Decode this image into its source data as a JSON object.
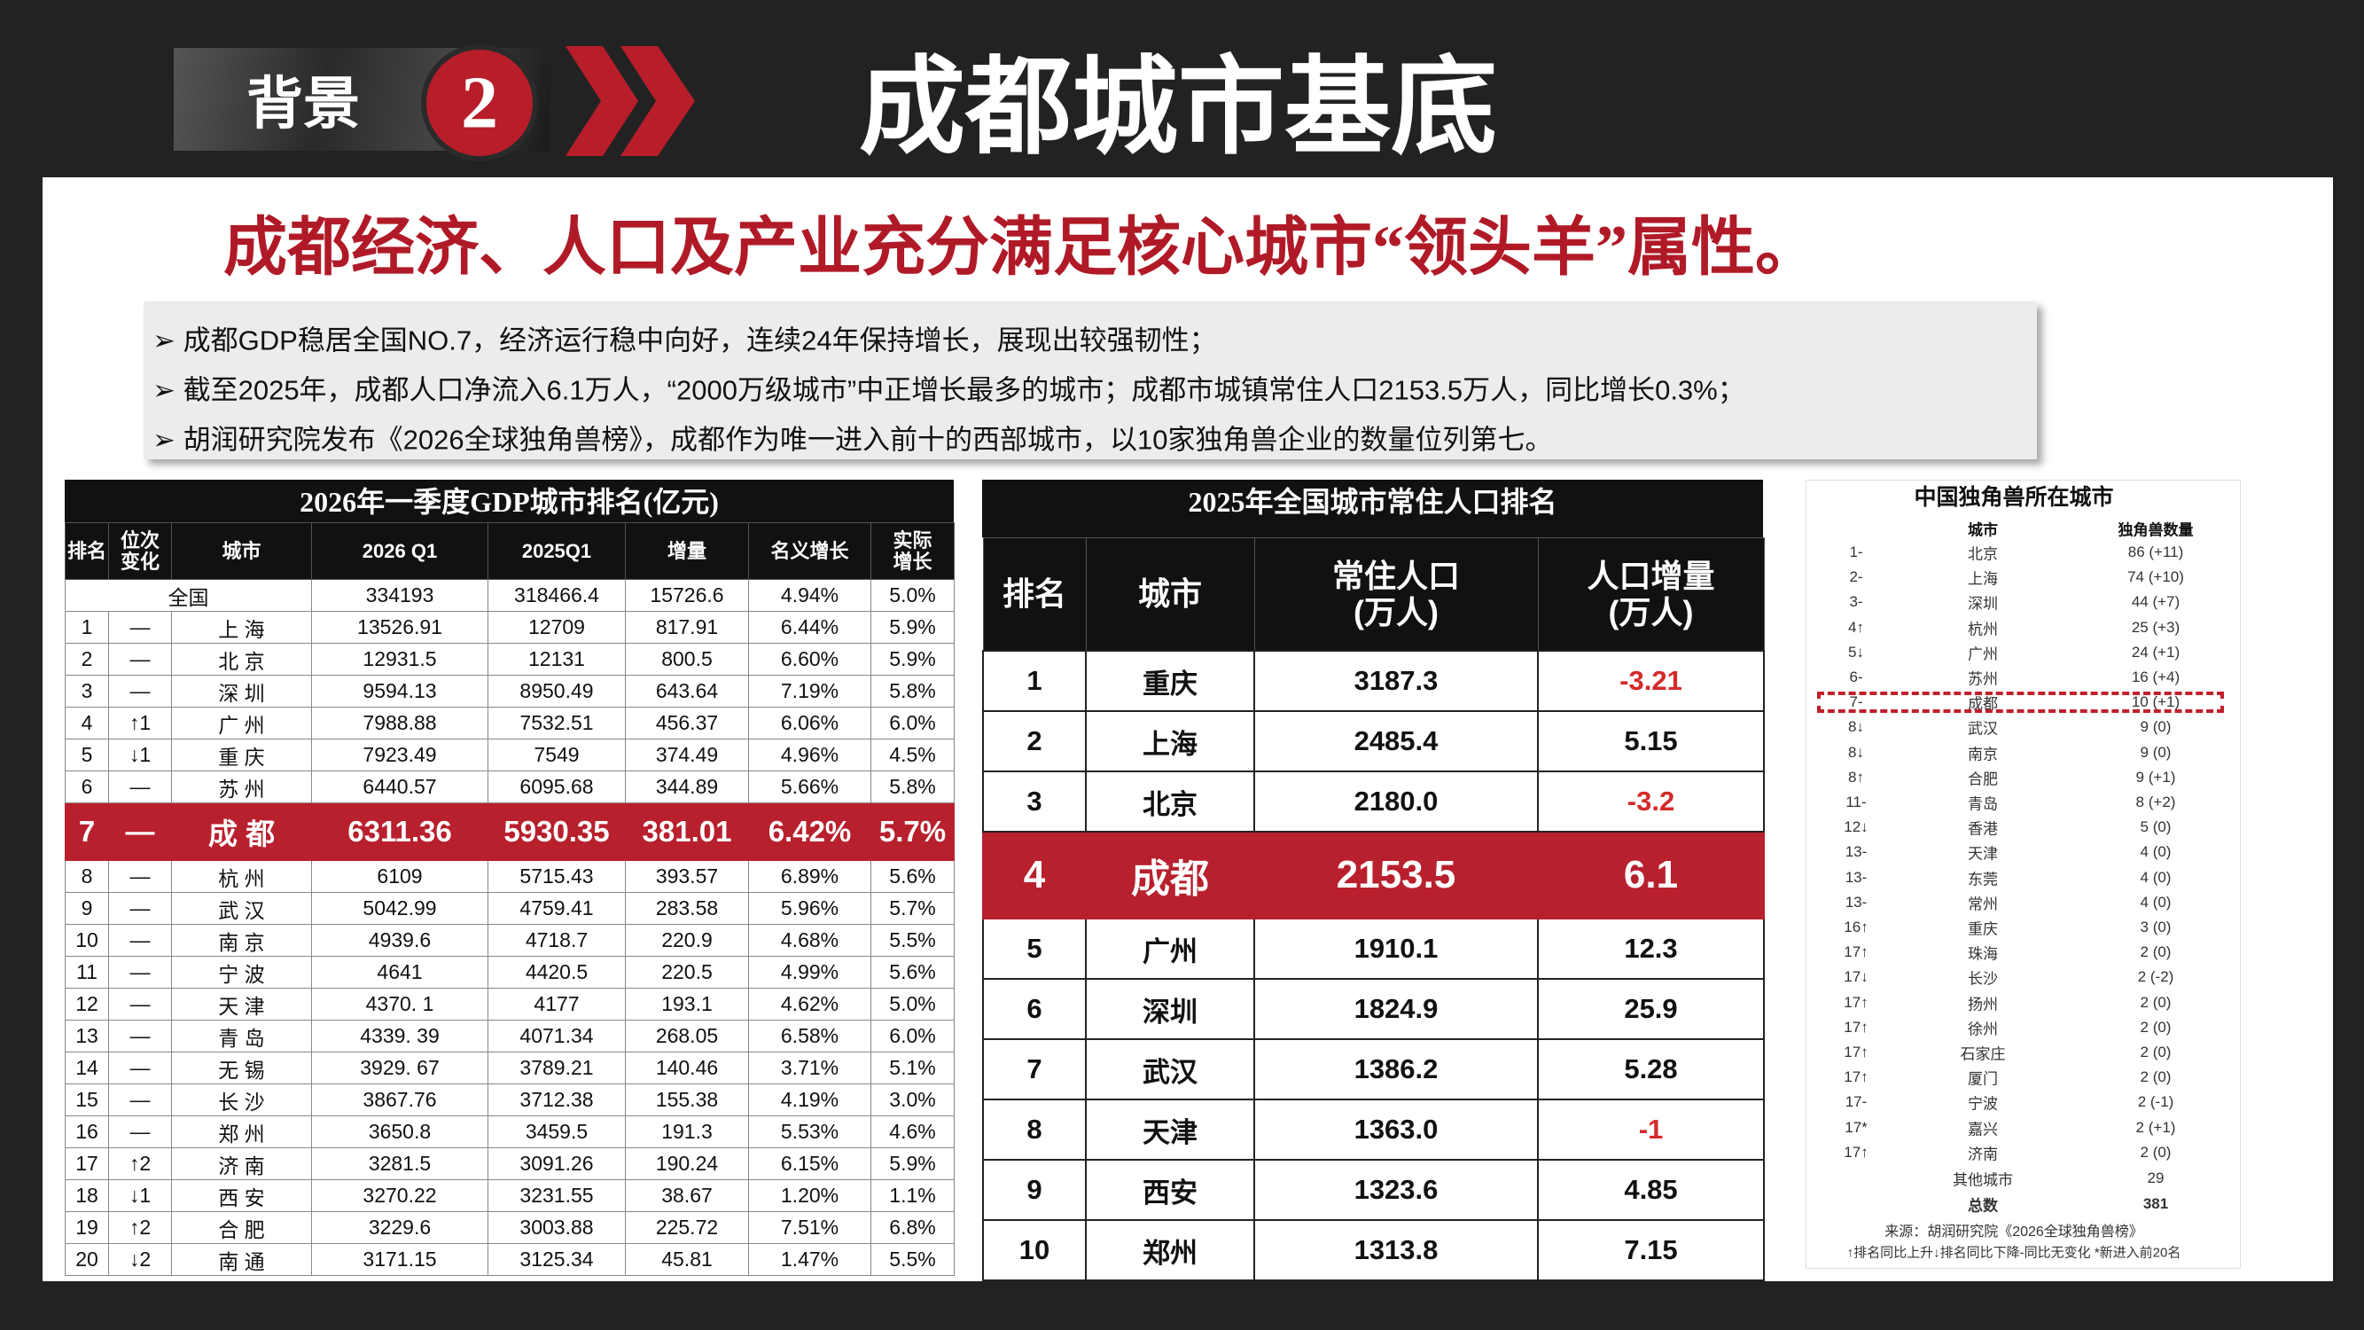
{
  "header": {
    "section": "背景",
    "number": "2",
    "title": "成都城市基底"
  },
  "headline": "成都经济、人口及产业充分满足核心城市“领头羊”属性。",
  "bullets": [
    "成都GDP稳居全国NO.7，经济运行稳中向好，连续24年保持增长，展现出较强韧性；",
    "截至2025年，成都人口净流入6.1万人，“2000万级城市”中正增长最多的城市；成都市城镇常住人口2153.5万人，同比增长0.3%；",
    "胡润研究院发布《2026全球独角兽榜》，成都作为唯一进入前十的西部城市，以10家独角兽企业的数量位列第七。"
  ],
  "gdp_table": {
    "title": "2026年一季度GDP城市排名(亿元)",
    "columns": [
      "排名",
      "位次\n变化",
      "城市",
      "2026 Q1",
      "2025Q1",
      "增量",
      "名义增长",
      "实际\n增长"
    ],
    "national": {
      "label": "全国",
      "values": [
        "334193",
        "318466.4",
        "15726.6",
        "4.94%",
        "5.0%"
      ]
    },
    "highlight_row": 6,
    "rows": [
      [
        "1",
        "—",
        "上 海",
        "13526.91",
        "12709",
        "817.91",
        "6.44%",
        "5.9%"
      ],
      [
        "2",
        "—",
        "北 京",
        "12931.5",
        "12131",
        "800.5",
        "6.60%",
        "5.9%"
      ],
      [
        "3",
        "—",
        "深 圳",
        "9594.13",
        "8950.49",
        "643.64",
        "7.19%",
        "5.8%"
      ],
      [
        "4",
        "↑1",
        "广 州",
        "7988.88",
        "7532.51",
        "456.37",
        "6.06%",
        "6.0%"
      ],
      [
        "5",
        "↓1",
        "重 庆",
        "7923.49",
        "7549",
        "374.49",
        "4.96%",
        "4.5%"
      ],
      [
        "6",
        "—",
        "苏 州",
        "6440.57",
        "6095.68",
        "344.89",
        "5.66%",
        "5.8%"
      ],
      [
        "7",
        "—",
        "成 都",
        "6311.36",
        "5930.35",
        "381.01",
        "6.42%",
        "5.7%"
      ],
      [
        "8",
        "—",
        "杭 州",
        "6109",
        "5715.43",
        "393.57",
        "6.89%",
        "5.6%"
      ],
      [
        "9",
        "—",
        "武 汉",
        "5042.99",
        "4759.41",
        "283.58",
        "5.96%",
        "5.7%"
      ],
      [
        "10",
        "—",
        "南 京",
        "4939.6",
        "4718.7",
        "220.9",
        "4.68%",
        "5.5%"
      ],
      [
        "11",
        "—",
        "宁 波",
        "4641",
        "4420.5",
        "220.5",
        "4.99%",
        "5.6%"
      ],
      [
        "12",
        "—",
        "天 津",
        "4370. 1",
        "4177",
        "193.1",
        "4.62%",
        "5.0%"
      ],
      [
        "13",
        "—",
        "青 岛",
        "4339. 39",
        "4071.34",
        "268.05",
        "6.58%",
        "6.0%"
      ],
      [
        "14",
        "—",
        "无 锡",
        "3929. 67",
        "3789.21",
        "140.46",
        "3.71%",
        "5.1%"
      ],
      [
        "15",
        "—",
        "长 沙",
        "3867.76",
        "3712.38",
        "155.38",
        "4.19%",
        "3.0%"
      ],
      [
        "16",
        "—",
        "郑 州",
        "3650.8",
        "3459.5",
        "191.3",
        "5.53%",
        "4.6%"
      ],
      [
        "17",
        "↑2",
        "济 南",
        "3281.5",
        "3091.26",
        "190.24",
        "6.15%",
        "5.9%"
      ],
      [
        "18",
        "↓1",
        "西 安",
        "3270.22",
        "3231.55",
        "38.67",
        "1.20%",
        "1.1%"
      ],
      [
        "19",
        "↑2",
        "合 肥",
        "3229.6",
        "3003.88",
        "225.72",
        "7.51%",
        "6.8%"
      ],
      [
        "20",
        "↓2",
        "南 通",
        "3171.15",
        "3125.34",
        "45.81",
        "1.47%",
        "5.5%"
      ]
    ]
  },
  "population_table": {
    "title": "2025年全国城市常住人口排名",
    "columns": [
      "排名",
      "城市",
      "常住人口\n(万人)",
      "人口增量\n(万人)"
    ],
    "highlight_row": 3,
    "rows": [
      [
        "1",
        "重庆",
        "3187.3",
        "-3.21"
      ],
      [
        "2",
        "上海",
        "2485.4",
        "5.15"
      ],
      [
        "3",
        "北京",
        "2180.0",
        "-3.2"
      ],
      [
        "4",
        "成都",
        "2153.5",
        "6.1"
      ],
      [
        "5",
        "广州",
        "1910.1",
        "12.3"
      ],
      [
        "6",
        "深圳",
        "1824.9",
        "25.9"
      ],
      [
        "7",
        "武汉",
        "1386.2",
        "5.28"
      ],
      [
        "8",
        "天津",
        "1363.0",
        "-1"
      ],
      [
        "9",
        "西安",
        "1323.6",
        "4.85"
      ],
      [
        "10",
        "郑州",
        "1313.8",
        "7.15"
      ]
    ]
  },
  "unicorn_table": {
    "title": "中国独角兽所在城市",
    "columns": [
      "城市",
      "独角兽数量"
    ],
    "highlight_row": 6,
    "rows": [
      [
        "1-",
        "北京",
        "86 (+11)"
      ],
      [
        "2-",
        "上海",
        "74 (+10)"
      ],
      [
        "3-",
        "深圳",
        "44 (+7)"
      ],
      [
        "4↑",
        "杭州",
        "25 (+3)"
      ],
      [
        "5↓",
        "广州",
        "24 (+1)"
      ],
      [
        "6-",
        "苏州",
        "16 (+4)"
      ],
      [
        "7-",
        "成都",
        "10 (+1)"
      ],
      [
        "8↓",
        "武汉",
        "9 (0)"
      ],
      [
        "8↓",
        "南京",
        "9 (0)"
      ],
      [
        "8↑",
        "合肥",
        "9 (+1)"
      ],
      [
        "11-",
        "青岛",
        "8 (+2)"
      ],
      [
        "12↓",
        "香港",
        "5 (0)"
      ],
      [
        "13-",
        "天津",
        "4 (0)"
      ],
      [
        "13-",
        "东莞",
        "4 (0)"
      ],
      [
        "13-",
        "常州",
        "4 (0)"
      ],
      [
        "16↑",
        "重庆",
        "3 (0)"
      ],
      [
        "17↑",
        "珠海",
        "2 (0)"
      ],
      [
        "17↓",
        "长沙",
        "2 (-2)"
      ],
      [
        "17↑",
        "扬州",
        "2 (0)"
      ],
      [
        "17↑",
        "徐州",
        "2 (0)"
      ],
      [
        "17↑",
        "石家庄",
        "2 (0)"
      ],
      [
        "17↑",
        "厦门",
        "2 (0)"
      ],
      [
        "17-",
        "宁波",
        "2 (-1)"
      ],
      [
        "17*",
        "嘉兴",
        "2 (+1)"
      ],
      [
        "17↑",
        "济南",
        "2 (0)"
      ]
    ],
    "others": [
      "其他城市",
      "29"
    ],
    "total": [
      "总数",
      "381"
    ],
    "source": "来源：胡润研究院《2026全球独角兽榜》",
    "note": "↑排名同比上升↓排名同比下降-同比无变化 *新进入前20名"
  }
}
